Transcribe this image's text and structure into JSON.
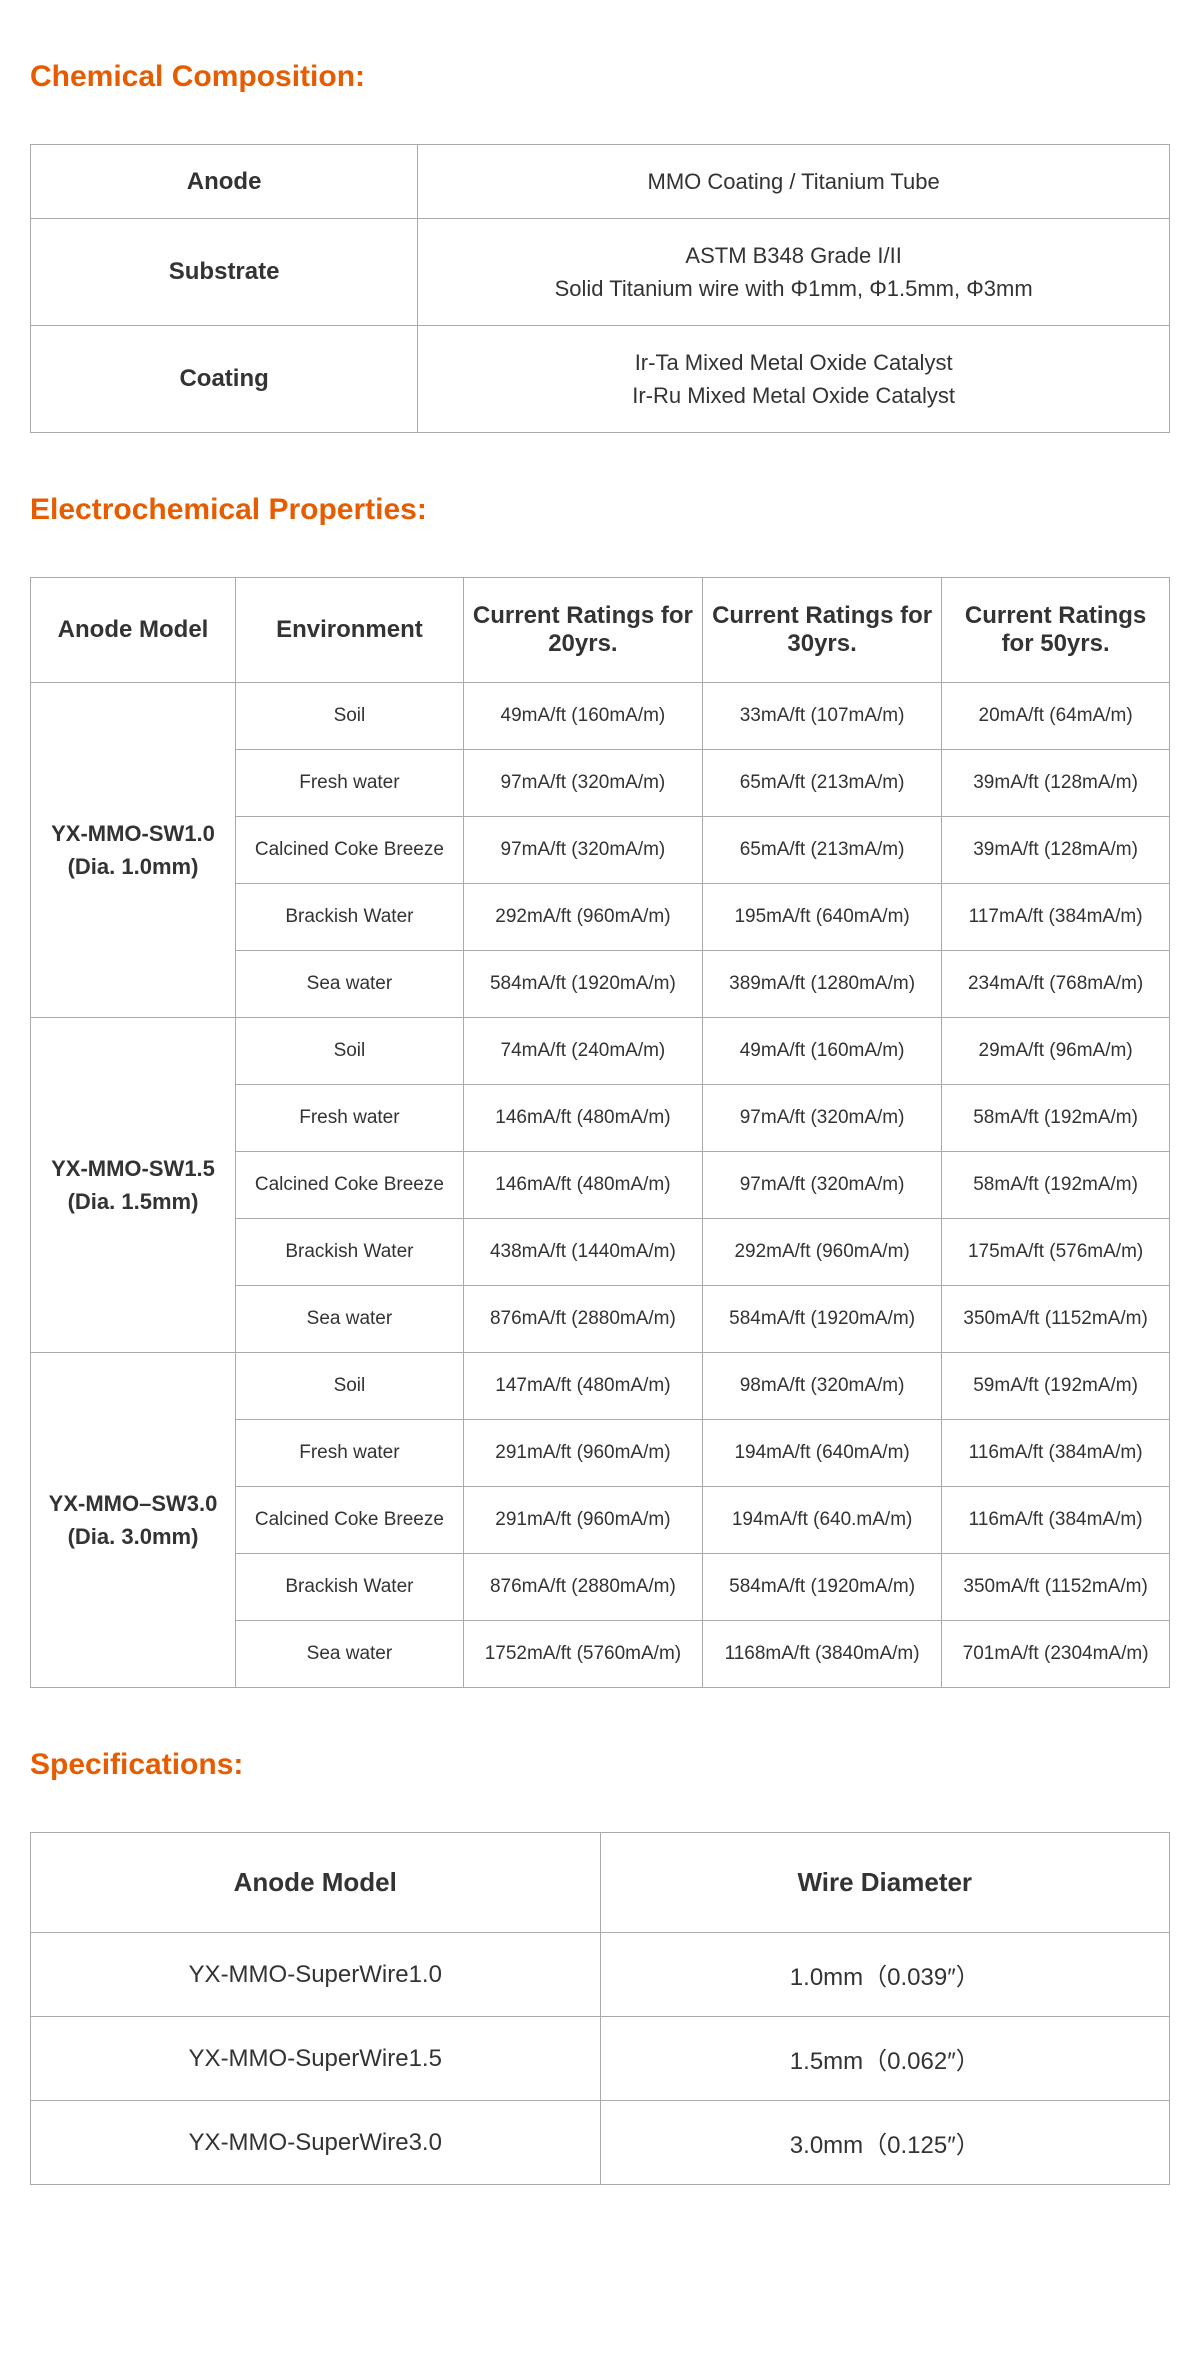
{
  "colors": {
    "accent": "#e65c00",
    "border": "#aaaaaa",
    "text": "#333333",
    "background": "#ffffff"
  },
  "chem": {
    "title": "Chemical Composition:",
    "rows": [
      {
        "label": "Anode",
        "lines": [
          "MMO Coating / Titanium Tube"
        ]
      },
      {
        "label": "Substrate",
        "lines": [
          "ASTM B348 Grade I/II",
          "Solid Titanium wire with Φ1mm, Φ1.5mm, Φ3mm"
        ]
      },
      {
        "label": "Coating",
        "lines": [
          "Ir-Ta Mixed Metal Oxide Catalyst",
          "Ir-Ru Mixed Metal Oxide Catalyst"
        ]
      }
    ]
  },
  "ep": {
    "title": "Electrochemical Properties:",
    "headers": [
      "Anode Model",
      "Environment",
      "Current Ratings for 20yrs.",
      "Current Ratings for 30yrs.",
      "Current Ratings for 50yrs."
    ],
    "col_widths": [
      "18%",
      "20%",
      "21%",
      "21%",
      "20%"
    ],
    "groups": [
      {
        "model_lines": [
          "YX-MMO-SW1.0",
          "(Dia. 1.0mm)"
        ],
        "rows": [
          {
            "env": "Soil",
            "v20": "49mA/ft (160mA/m)",
            "v30": "33mA/ft (107mA/m)",
            "v50": "20mA/ft (64mA/m)"
          },
          {
            "env": "Fresh water",
            "v20": "97mA/ft (320mA/m)",
            "v30": "65mA/ft (213mA/m)",
            "v50": "39mA/ft (128mA/m)"
          },
          {
            "env": "Calcined Coke Breeze",
            "v20": "97mA/ft (320mA/m)",
            "v30": "65mA/ft (213mA/m)",
            "v50": "39mA/ft (128mA/m)"
          },
          {
            "env": "Brackish Water",
            "v20": "292mA/ft (960mA/m)",
            "v30": "195mA/ft (640mA/m)",
            "v50": "117mA/ft (384mA/m)"
          },
          {
            "env": "Sea water",
            "v20": "584mA/ft (1920mA/m)",
            "v30": "389mA/ft (1280mA/m)",
            "v50": "234mA/ft (768mA/m)"
          }
        ]
      },
      {
        "model_lines": [
          "YX-MMO-SW1.5",
          "(Dia. 1.5mm)"
        ],
        "rows": [
          {
            "env": "Soil",
            "v20": "74mA/ft (240mA/m)",
            "v30": "49mA/ft (160mA/m)",
            "v50": "29mA/ft (96mA/m)"
          },
          {
            "env": "Fresh water",
            "v20": "146mA/ft (480mA/m)",
            "v30": "97mA/ft (320mA/m)",
            "v50": "58mA/ft (192mA/m)"
          },
          {
            "env": "Calcined Coke Breeze",
            "v20": "146mA/ft (480mA/m)",
            "v30": "97mA/ft (320mA/m)",
            "v50": "58mA/ft (192mA/m)"
          },
          {
            "env": "Brackish Water",
            "v20": "438mA/ft (1440mA/m)",
            "v30": "292mA/ft (960mA/m)",
            "v50": "175mA/ft (576mA/m)"
          },
          {
            "env": "Sea water",
            "v20": "876mA/ft (2880mA/m)",
            "v30": "584mA/ft (1920mA/m)",
            "v50": "350mA/ft (1152mA/m)"
          }
        ]
      },
      {
        "model_lines": [
          "YX-MMO–SW3.0",
          "(Dia. 3.0mm)"
        ],
        "rows": [
          {
            "env": "Soil",
            "v20": "147mA/ft (480mA/m)",
            "v30": "98mA/ft (320mA/m)",
            "v50": "59mA/ft (192mA/m)"
          },
          {
            "env": "Fresh water",
            "v20": "291mA/ft (960mA/m)",
            "v30": "194mA/ft (640mA/m)",
            "v50": "116mA/ft (384mA/m)"
          },
          {
            "env": "Calcined Coke Breeze",
            "v20": "291mA/ft (960mA/m)",
            "v30": "194mA/ft (640.mA/m)",
            "v50": "116mA/ft (384mA/m)"
          },
          {
            "env": "Brackish Water",
            "v20": "876mA/ft (2880mA/m)",
            "v30": "584mA/ft (1920mA/m)",
            "v50": "350mA/ft (1152mA/m)"
          },
          {
            "env": "Sea water",
            "v20": "1752mA/ft (5760mA/m)",
            "v30": "1168mA/ft (3840mA/m)",
            "v50": "701mA/ft (2304mA/m)"
          }
        ]
      }
    ]
  },
  "spec": {
    "title": "Specifications:",
    "headers": [
      "Anode Model",
      "Wire Diameter"
    ],
    "rows": [
      {
        "model": "YX-MMO-SuperWire1.0",
        "wire": "1.0mm（0.039″）"
      },
      {
        "model": "YX-MMO-SuperWire1.5",
        "wire": "1.5mm（0.062″）"
      },
      {
        "model": "YX-MMO-SuperWire3.0",
        "wire": "3.0mm（0.125″）"
      }
    ]
  }
}
